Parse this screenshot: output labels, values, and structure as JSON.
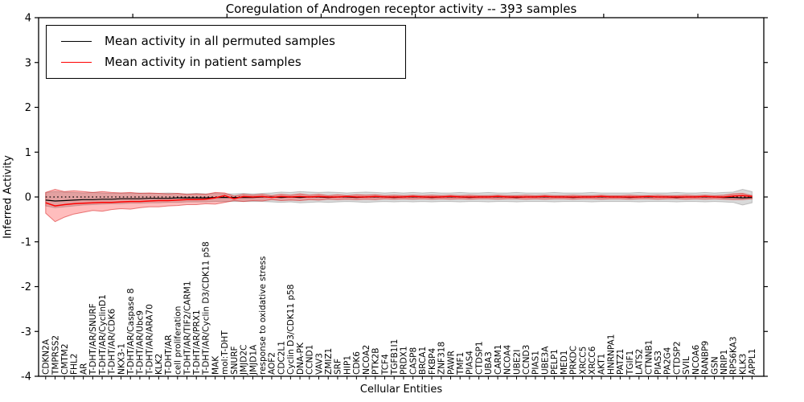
{
  "figure": {
    "title": "Coregulation of Androgen receptor activity -- 393 samples",
    "xlabel": "Cellular Entities",
    "ylabel": "Inferred Activity"
  },
  "legend": {
    "items": [
      {
        "label": "Mean activity in all permuted samples",
        "color": "#000000"
      },
      {
        "label": "Mean activity in patient samples",
        "color": "#ff0000"
      }
    ]
  },
  "colors": {
    "permuted_line": "#000000",
    "patient_line": "#ff0000",
    "permuted_band_fill": "rgba(120,120,120,0.28)",
    "permuted_band_edge": "rgba(110,110,110,0.35)",
    "patient_band_fill": "rgba(255,0,0,0.26)",
    "patient_band_edge": "rgba(215,30,30,0.55)",
    "zero_line": "#000000",
    "frame": "#000000"
  },
  "chart_data": {
    "type": "line",
    "title": "Coregulation of Androgen receptor activity -- 393 samples",
    "xlabel": "Cellular Entities",
    "ylabel": "Inferred Activity",
    "ylim": [
      -4,
      4
    ],
    "yticks": [
      -4,
      -3,
      -2,
      -1,
      0,
      1,
      2,
      3,
      4
    ],
    "x_units_range": [
      0,
      77
    ],
    "x_major_tick_interval": 10,
    "grid": false,
    "legend_position": "upper left",
    "zero_line": {
      "style": "dotted",
      "color": "#000000",
      "y": 0
    },
    "categories": [
      "CDKN2A",
      "TMPRSS2",
      "CMTM2",
      "FHL2",
      "AR",
      "T-DHT/AR/SNURF",
      "T-DHT/AR/CyclinD1",
      "T-DHT/AR/CDK6",
      "NKX3-1",
      "T-DHT/AR/Caspase 8",
      "T-DHT/AR/Ubc9",
      "T-DHT/AR/ARA70",
      "KLK2",
      "T-DHT/AR",
      "cell proliferation",
      "T-DHT/AR/TIF2/CARM1",
      "T-DHT/AR/PRX1",
      "T-DHT/AR/Cyclin D3/CDK11 p58",
      "MAK",
      "mol:T-DHT",
      "SNURF",
      "JMJD2C",
      "JMJD1A",
      "response to oxidative stress",
      "AOF2",
      "CDC2L1",
      "Cyclin D3/CDK11 p58",
      "DNA-PK",
      "CCND1",
      "VAV3",
      "ZMIZ1",
      "SRF",
      "HIP1",
      "CDK6",
      "NCOA2",
      "PTK2B",
      "TCF4",
      "TGFB1I1",
      "PRDX1",
      "CASP8",
      "BRCA1",
      "FKBP4",
      "ZNF318",
      "PAWR",
      "TMF1",
      "PIAS4",
      "CTDSP1",
      "UBA3",
      "CARM1",
      "NCOA4",
      "UBE2I",
      "CCND3",
      "PIAS1",
      "UBE3A",
      "PELP1",
      "MED1",
      "PRKDC",
      "XRCC5",
      "XRCC6",
      "AKT1",
      "HNRNPA1",
      "PATZ1",
      "TGIF1",
      "LATS2",
      "CTNNB1",
      "PIAS3",
      "PA2G4",
      "CTDSP2",
      "SVIL",
      "NCOA6",
      "RANBP9",
      "GSN",
      "NRIP1",
      "RPS6KA3",
      "KLK3",
      "APPL1"
    ],
    "series": [
      {
        "name": "Mean activity in all permuted samples",
        "color": "#000000",
        "values": [
          -0.07,
          -0.09,
          -0.08,
          -0.07,
          -0.06,
          -0.06,
          -0.05,
          -0.05,
          -0.04,
          -0.04,
          -0.04,
          -0.03,
          -0.03,
          -0.03,
          -0.02,
          -0.02,
          -0.02,
          -0.02,
          -0.01,
          -0.01,
          -0.01,
          -0.01,
          -0.01,
          0.0,
          0.0,
          -0.01,
          0.0,
          -0.01,
          0.0,
          0.0,
          -0.01,
          0.0,
          0.0,
          -0.01,
          0.0,
          0.0,
          0.0,
          -0.01,
          0.0,
          0.0,
          0.0,
          -0.01,
          0.0,
          0.0,
          0.0,
          -0.01,
          0.0,
          0.0,
          0.0,
          0.0,
          -0.01,
          0.0,
          0.0,
          0.0,
          0.0,
          0.0,
          -0.01,
          0.0,
          0.0,
          0.0,
          0.0,
          0.0,
          -0.01,
          0.0,
          0.0,
          0.0,
          0.0,
          -0.01,
          0.0,
          0.0,
          0.0,
          0.0,
          -0.01,
          -0.01,
          -0.02,
          -0.01
        ],
        "band_upper": [
          0.1,
          0.12,
          0.11,
          0.1,
          0.09,
          0.1,
          0.09,
          0.08,
          0.09,
          0.08,
          0.09,
          0.08,
          0.08,
          0.09,
          0.08,
          0.07,
          0.08,
          0.07,
          0.08,
          0.07,
          0.07,
          0.08,
          0.07,
          0.08,
          0.09,
          0.11,
          0.1,
          0.12,
          0.11,
          0.1,
          0.11,
          0.1,
          0.09,
          0.1,
          0.11,
          0.1,
          0.09,
          0.1,
          0.09,
          0.1,
          0.09,
          0.1,
          0.09,
          0.09,
          0.1,
          0.09,
          0.09,
          0.1,
          0.09,
          0.09,
          0.1,
          0.09,
          0.09,
          0.09,
          0.1,
          0.09,
          0.09,
          0.09,
          0.1,
          0.09,
          0.09,
          0.09,
          0.09,
          0.1,
          0.09,
          0.09,
          0.09,
          0.1,
          0.09,
          0.09,
          0.1,
          0.09,
          0.1,
          0.11,
          0.17,
          0.12
        ],
        "band_lower": [
          -0.2,
          -0.24,
          -0.22,
          -0.2,
          -0.18,
          -0.17,
          -0.16,
          -0.15,
          -0.15,
          -0.14,
          -0.14,
          -0.13,
          -0.13,
          -0.12,
          -0.12,
          -0.11,
          -0.11,
          -0.11,
          -0.1,
          -0.1,
          -0.1,
          -0.1,
          -0.1,
          -0.1,
          -0.11,
          -0.12,
          -0.11,
          -0.13,
          -0.12,
          -0.11,
          -0.12,
          -0.11,
          -0.1,
          -0.11,
          -0.12,
          -0.11,
          -0.1,
          -0.11,
          -0.1,
          -0.11,
          -0.1,
          -0.11,
          -0.1,
          -0.1,
          -0.11,
          -0.1,
          -0.1,
          -0.11,
          -0.1,
          -0.1,
          -0.11,
          -0.1,
          -0.1,
          -0.1,
          -0.11,
          -0.1,
          -0.1,
          -0.1,
          -0.11,
          -0.1,
          -0.1,
          -0.1,
          -0.1,
          -0.11,
          -0.1,
          -0.1,
          -0.1,
          -0.11,
          -0.1,
          -0.1,
          -0.11,
          -0.1,
          -0.11,
          -0.12,
          -0.18,
          -0.13
        ]
      },
      {
        "name": "Mean activity in patient samples",
        "color": "#ff0000",
        "values": [
          -0.13,
          -0.2,
          -0.17,
          -0.15,
          -0.14,
          -0.13,
          -0.12,
          -0.12,
          -0.11,
          -0.1,
          -0.1,
          -0.09,
          -0.08,
          -0.08,
          -0.07,
          -0.06,
          -0.06,
          -0.05,
          -0.02,
          0.03,
          -0.04,
          0.01,
          0.0,
          0.01,
          -0.01,
          0.01,
          0.0,
          0.01,
          0.0,
          0.01,
          0.0,
          0.0,
          0.01,
          0.0,
          0.0,
          0.01,
          0.0,
          0.0,
          0.0,
          0.01,
          0.0,
          0.0,
          0.0,
          0.01,
          0.0,
          0.0,
          0.0,
          0.0,
          0.01,
          0.0,
          0.0,
          0.0,
          0.0,
          0.01,
          0.0,
          0.0,
          0.0,
          0.0,
          0.0,
          0.01,
          0.0,
          0.0,
          0.0,
          0.0,
          0.01,
          0.0,
          0.0,
          0.0,
          0.0,
          0.0,
          0.01,
          0.0,
          0.0,
          0.02,
          0.03,
          0.01
        ],
        "band_upper": [
          0.1,
          0.17,
          0.12,
          0.14,
          0.12,
          0.1,
          0.12,
          0.1,
          0.09,
          0.1,
          0.08,
          0.09,
          0.08,
          0.07,
          0.08,
          0.06,
          0.07,
          0.06,
          0.1,
          0.09,
          0.02,
          0.06,
          0.04,
          0.06,
          0.03,
          0.06,
          0.04,
          0.07,
          0.04,
          0.06,
          0.03,
          0.05,
          0.03,
          0.05,
          0.04,
          0.05,
          0.03,
          0.04,
          0.03,
          0.04,
          0.03,
          0.04,
          0.03,
          0.04,
          0.03,
          0.04,
          0.03,
          0.03,
          0.04,
          0.03,
          0.03,
          0.04,
          0.03,
          0.04,
          0.03,
          0.03,
          0.04,
          0.03,
          0.03,
          0.04,
          0.03,
          0.03,
          0.04,
          0.03,
          0.03,
          0.04,
          0.03,
          0.03,
          0.04,
          0.03,
          0.04,
          0.03,
          0.04,
          0.07,
          0.08,
          0.03
        ],
        "band_lower": [
          -0.36,
          -0.55,
          -0.45,
          -0.38,
          -0.34,
          -0.3,
          -0.32,
          -0.28,
          -0.26,
          -0.27,
          -0.24,
          -0.22,
          -0.22,
          -0.2,
          -0.19,
          -0.17,
          -0.17,
          -0.15,
          -0.16,
          -0.12,
          -0.08,
          -0.1,
          -0.08,
          -0.09,
          -0.06,
          -0.08,
          -0.07,
          -0.08,
          -0.06,
          -0.07,
          -0.05,
          -0.06,
          -0.05,
          -0.06,
          -0.05,
          -0.06,
          -0.04,
          -0.05,
          -0.04,
          -0.05,
          -0.04,
          -0.05,
          -0.04,
          -0.05,
          -0.04,
          -0.05,
          -0.04,
          -0.04,
          -0.05,
          -0.04,
          -0.04,
          -0.05,
          -0.04,
          -0.05,
          -0.04,
          -0.04,
          -0.05,
          -0.04,
          -0.04,
          -0.05,
          -0.04,
          -0.04,
          -0.05,
          -0.04,
          -0.04,
          -0.05,
          -0.04,
          -0.04,
          -0.05,
          -0.04,
          -0.05,
          -0.04,
          -0.05,
          -0.06,
          -0.06,
          -0.04
        ]
      }
    ]
  }
}
